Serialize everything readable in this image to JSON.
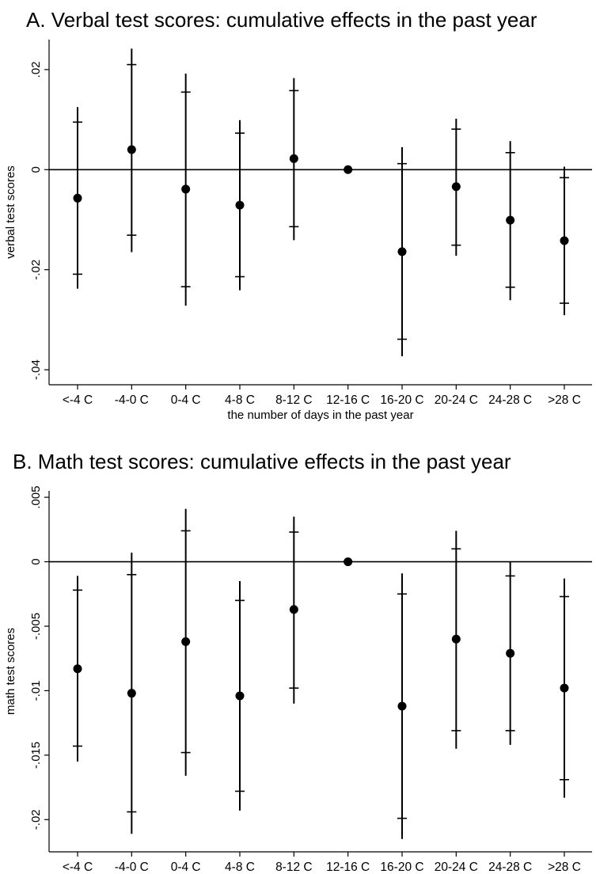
{
  "chart_data": [
    {
      "type": "scatter",
      "title": "A. Verbal test scores: cumulative effects in the past year",
      "xlabel": "the number of days in the past year",
      "ylabel": "verbal test scores",
      "categories": [
        "<-4 C",
        "-4-0 C",
        "0-4 C",
        "4-8 C",
        "8-12 C",
        "12-16 C",
        "16-20 C",
        "20-24 C",
        "24-28 C",
        ">28 C"
      ],
      "ylim": [
        -0.043,
        0.026
      ],
      "yticks": [
        {
          "value": -0.04,
          "label": "-.04"
        },
        {
          "value": -0.02,
          "label": "-.02"
        },
        {
          "value": 0,
          "label": "0"
        },
        {
          "value": 0.02,
          "label": ".02"
        }
      ],
      "reference_line": 0,
      "series": [
        {
          "values": [
            -0.0057,
            0.004,
            -0.0039,
            -0.0071,
            0.0022,
            0.0,
            -0.0164,
            -0.0034,
            -0.0101,
            -0.0142
          ],
          "ci95_low": [
            -0.0238,
            -0.0165,
            -0.0272,
            -0.0241,
            -0.0141,
            0.0,
            -0.0373,
            -0.0172,
            -0.0261,
            -0.0291
          ],
          "ci95_high": [
            0.0125,
            0.0242,
            0.0192,
            0.0099,
            0.0183,
            0.0,
            0.0045,
            0.0102,
            0.0057,
            0.0006
          ],
          "ci90_low": [
            -0.0209,
            -0.0131,
            -0.0234,
            -0.0214,
            -0.0114,
            0.0,
            -0.0339,
            -0.0151,
            -0.0235,
            -0.0267
          ],
          "ci90_high": [
            0.0095,
            0.021,
            0.0155,
            0.0073,
            0.0158,
            0.0,
            0.0012,
            0.0081,
            0.0034,
            -0.0016
          ]
        }
      ]
    },
    {
      "type": "scatter",
      "title": "B. Math test scores: cumulative effects in the past year",
      "xlabel": "the number of days in the past year",
      "ylabel": "math test scores",
      "categories": [
        "<-4 C",
        "-4-0 C",
        "0-4 C",
        "4-8 C",
        "8-12 C",
        "12-16 C",
        "16-20 C",
        "20-24 C",
        "24-28 C",
        ">28 C"
      ],
      "ylim": [
        -0.0225,
        0.0055
      ],
      "yticks": [
        {
          "value": -0.02,
          "label": "-.02"
        },
        {
          "value": -0.015,
          "label": "-.015"
        },
        {
          "value": -0.01,
          "label": "-.01"
        },
        {
          "value": -0.005,
          "label": "-.005"
        },
        {
          "value": 0,
          "label": "0"
        },
        {
          "value": 0.005,
          "label": ".005"
        }
      ],
      "reference_line": 0,
      "series": [
        {
          "values": [
            -0.0083,
            -0.0102,
            -0.0062,
            -0.0104,
            -0.0037,
            0.0,
            -0.0112,
            -0.006,
            -0.0071,
            -0.0098
          ],
          "ci95_low": [
            -0.0155,
            -0.0211,
            -0.0166,
            -0.0193,
            -0.011,
            0.0,
            -0.0215,
            -0.0145,
            -0.0142,
            -0.0183
          ],
          "ci95_high": [
            -0.0011,
            0.0007,
            0.0041,
            -0.0015,
            0.0035,
            0.0,
            -0.0009,
            0.0024,
            0.0,
            -0.0013
          ],
          "ci90_low": [
            -0.0143,
            -0.0194,
            -0.0148,
            -0.0178,
            -0.0098,
            0.0,
            -0.0199,
            -0.0131,
            -0.0131,
            -0.0169
          ],
          "ci90_high": [
            -0.0022,
            -0.001,
            0.0024,
            -0.003,
            0.0023,
            0.0,
            -0.0025,
            0.001,
            -0.0011,
            -0.0027
          ]
        }
      ]
    }
  ]
}
